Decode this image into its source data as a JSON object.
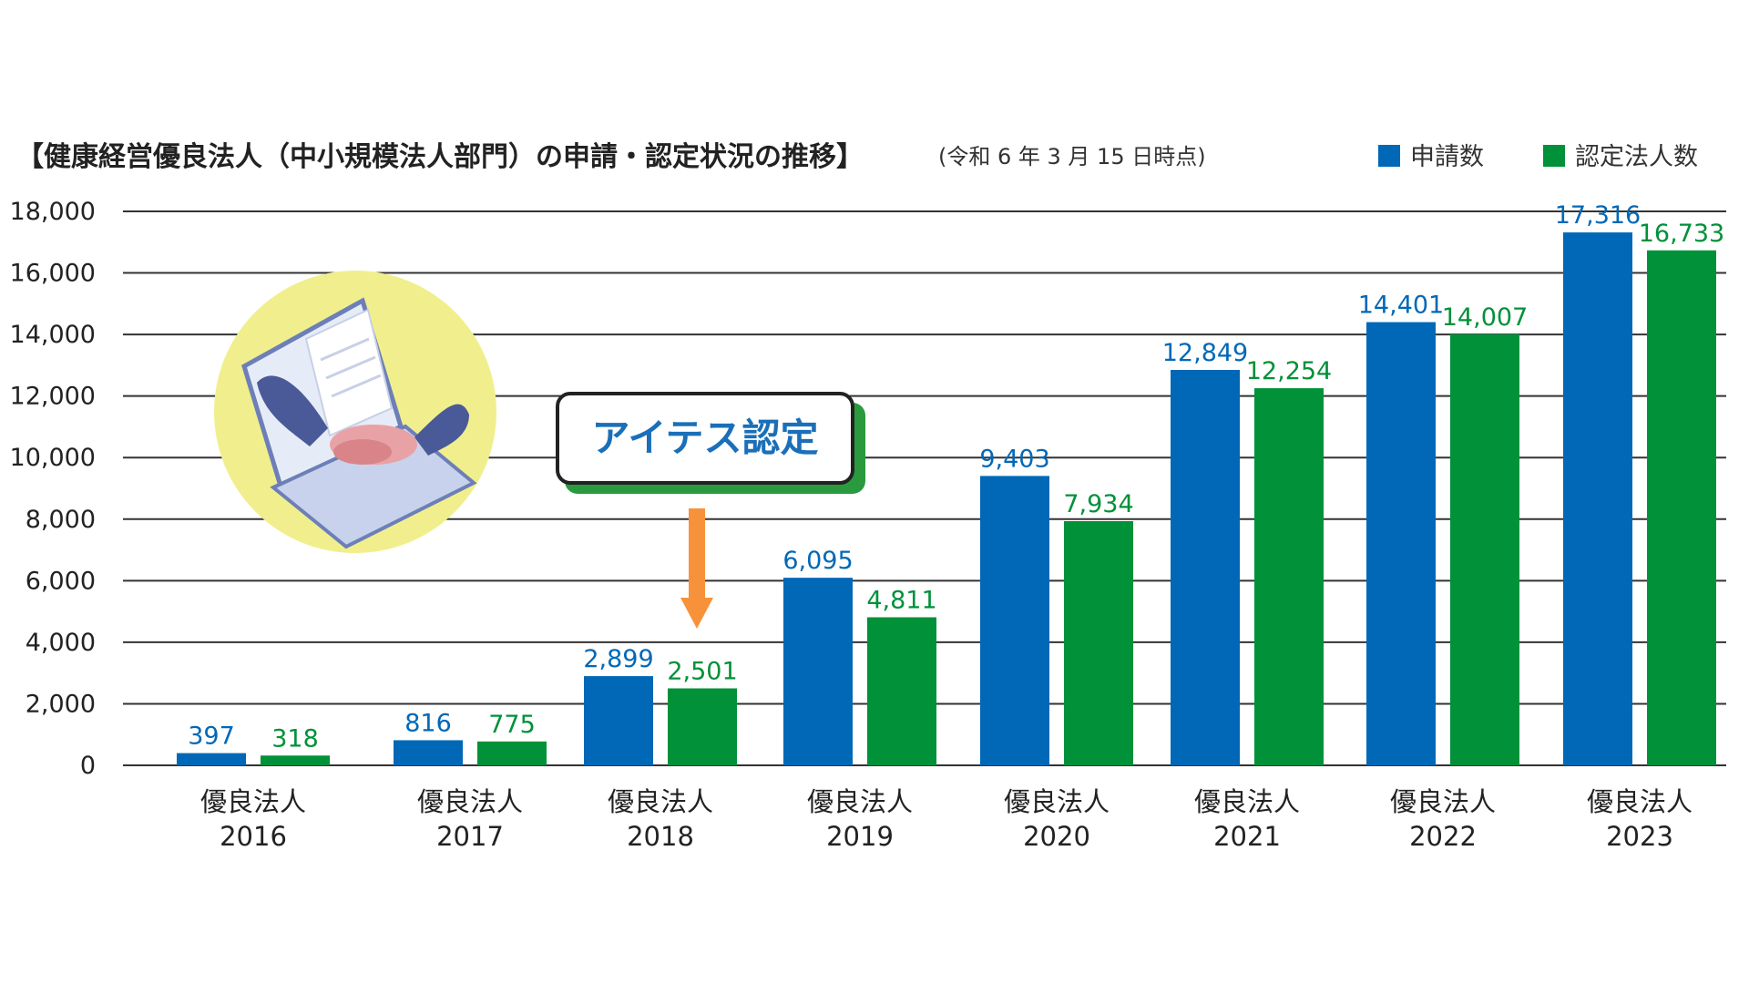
{
  "chart_data": {
    "type": "bar",
    "title": "【健康経営優良法人（中小規模法人部門）の申請・認定状況の推移】",
    "subtitle": "(令和 6 年 3 月 15 日時点)",
    "xlabel": "",
    "ylabel": "",
    "ylim": [
      0,
      18000
    ],
    "yticks": [
      0,
      2000,
      4000,
      6000,
      8000,
      10000,
      12000,
      14000,
      16000,
      18000
    ],
    "ytick_labels": [
      "0",
      "2,000",
      "4,000",
      "6,000",
      "8,000",
      "10,000",
      "12,000",
      "14,000",
      "16,000",
      "18,000"
    ],
    "categories": [
      {
        "line1": "優良法人",
        "line2": "2016"
      },
      {
        "line1": "優良法人",
        "line2": "2017"
      },
      {
        "line1": "優良法人",
        "line2": "2018"
      },
      {
        "line1": "優良法人",
        "line2": "2019"
      },
      {
        "line1": "優良法人",
        "line2": "2020"
      },
      {
        "line1": "優良法人",
        "line2": "2021"
      },
      {
        "line1": "優良法人",
        "line2": "2022"
      },
      {
        "line1": "優良法人",
        "line2": "2023"
      }
    ],
    "series": [
      {
        "name": "申請数",
        "color": "#0068b7",
        "values": [
          397,
          816,
          2899,
          6095,
          9403,
          12849,
          14401,
          17316
        ],
        "labels": [
          "397",
          "816",
          "2,899",
          "6,095",
          "9,403",
          "12,849",
          "14,401",
          "17,316"
        ]
      },
      {
        "name": "認定法人数",
        "color": "#009139",
        "values": [
          318,
          775,
          2501,
          4811,
          7934,
          12254,
          14007,
          16733
        ],
        "labels": [
          "318",
          "775",
          "2,501",
          "4,811",
          "7,934",
          "12,254",
          "14,007",
          "16,733"
        ]
      }
    ],
    "grid": true,
    "legend_position": "top-right",
    "annotation": {
      "text": "アイテス認定",
      "target_category_index": 2,
      "arrow_color": "#f7923a",
      "border_color": "#2a9a3e"
    },
    "illustration": "handshake-laptop-icon"
  }
}
